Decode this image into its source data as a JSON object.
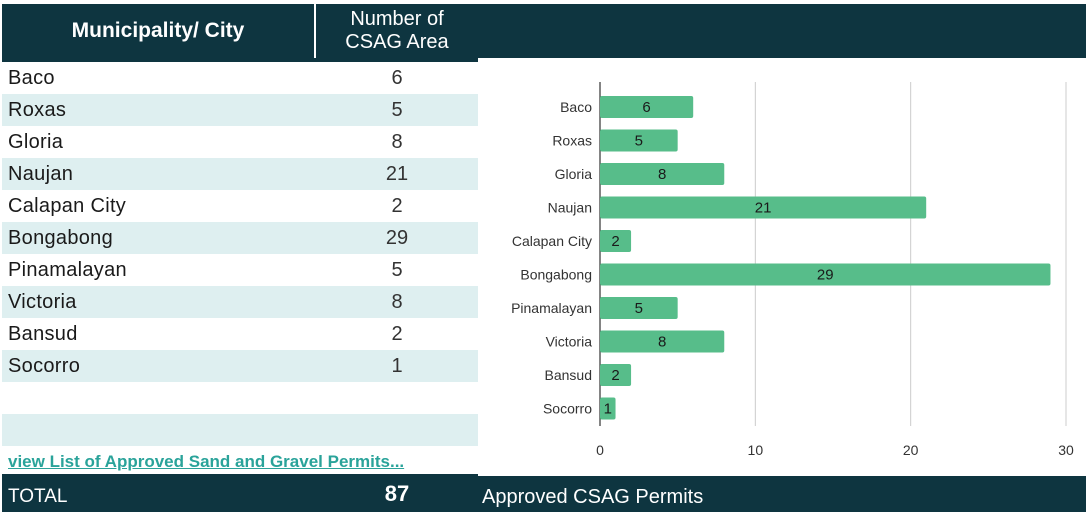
{
  "table": {
    "header_municipality": "Municipality/ City",
    "header_count_line1": "Number of",
    "header_count_line2": "CSAG Area",
    "rows": [
      {
        "name": "Baco",
        "count": "6"
      },
      {
        "name": "Roxas",
        "count": "5"
      },
      {
        "name": "Gloria",
        "count": "8"
      },
      {
        "name": "Naujan",
        "count": "21"
      },
      {
        "name": "Calapan City",
        "count": "2"
      },
      {
        "name": "Bongabong",
        "count": "29"
      },
      {
        "name": "Pinamalayan",
        "count": "5"
      },
      {
        "name": "Victoria",
        "count": "8"
      },
      {
        "name": "Bansud",
        "count": "2"
      },
      {
        "name": "Socorro",
        "count": "1"
      }
    ],
    "link_text": "view List of Approved Sand and Gravel Permits...",
    "total_label": "TOTAL",
    "total_value": "87"
  },
  "colors": {
    "header_bg": "#0e3540",
    "row_alt": "#deeff0",
    "bar": "#57bd8a",
    "link": "#2aa39a"
  },
  "chart_data": {
    "type": "bar",
    "orientation": "horizontal",
    "title": "Approved CSAG Permits",
    "categories": [
      "Baco",
      "Roxas",
      "Gloria",
      "Naujan",
      "Calapan City",
      "Bongabong",
      "Pinamalayan",
      "Victoria",
      "Bansud",
      "Socorro"
    ],
    "values": [
      6,
      5,
      8,
      21,
      2,
      29,
      5,
      8,
      2,
      1
    ],
    "xlim": [
      0,
      30
    ],
    "xticks": [
      "0",
      "10",
      "20",
      "30"
    ],
    "grid": true,
    "legend": "none"
  }
}
